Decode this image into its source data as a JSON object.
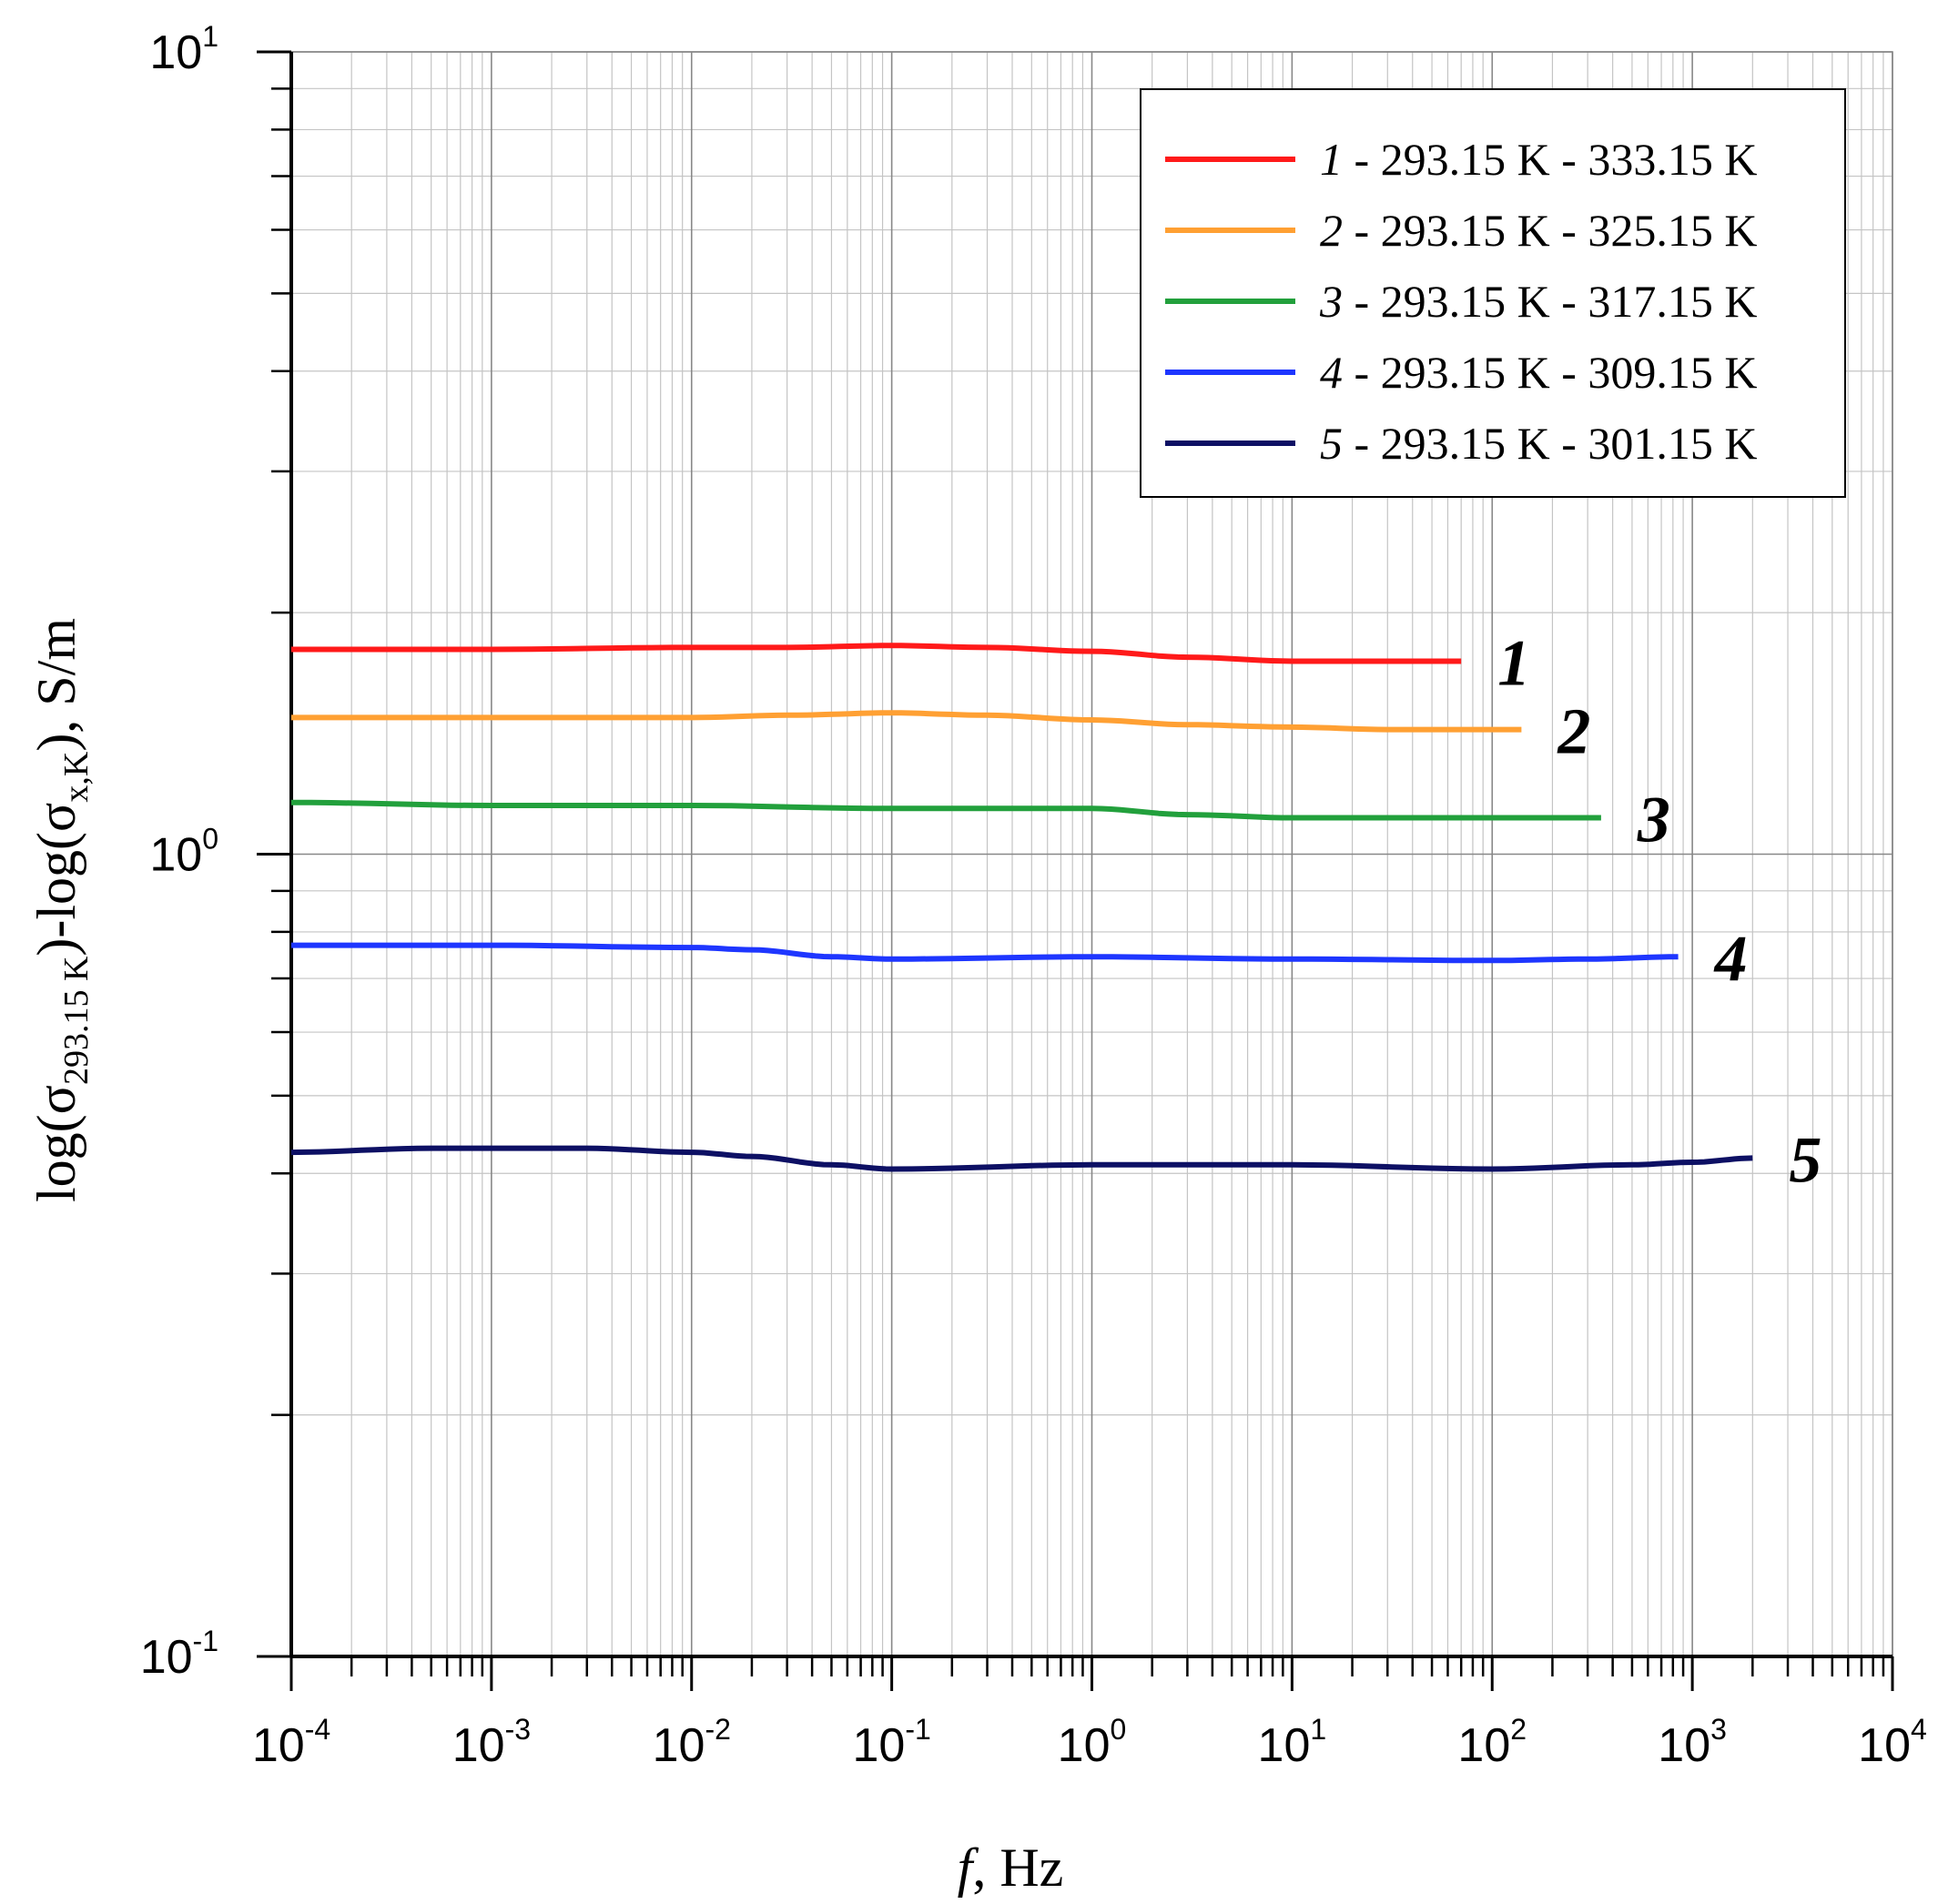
{
  "chart_data": {
    "type": "line",
    "xscale": "log",
    "yscale": "log",
    "xlim": [
      0.0001,
      10000
    ],
    "ylim": [
      0.1,
      10
    ],
    "x_ticks": [
      {
        "base": "10",
        "exp": "-4"
      },
      {
        "base": "10",
        "exp": "-3"
      },
      {
        "base": "10",
        "exp": "-2"
      },
      {
        "base": "10",
        "exp": "-1"
      },
      {
        "base": "10",
        "exp": "0"
      },
      {
        "base": "10",
        "exp": "1"
      },
      {
        "base": "10",
        "exp": "2"
      },
      {
        "base": "10",
        "exp": "3"
      },
      {
        "base": "10",
        "exp": "4"
      }
    ],
    "y_ticks": [
      {
        "base": "10",
        "exp": "1"
      },
      {
        "base": "10",
        "exp": "0"
      },
      {
        "base": "10",
        "exp": "-1"
      }
    ],
    "xlabel": {
      "italic": "f",
      "rest": ", Hz"
    },
    "ylabel": {
      "p1": "log(σ",
      "sub1": "293.15 K",
      "p2": ")-log(σ",
      "sub2": "x,K",
      "p3": "), S/m"
    },
    "grid": true,
    "legend_position": "top-right",
    "series": [
      {
        "name": "1 - 293.15 K - 333.15 K",
        "num": "1",
        "text": " - 293.15 K - 333.15 K",
        "color": "#ff1a1a",
        "x": [
          0.0001,
          0.001,
          0.01,
          0.03,
          0.1,
          0.3,
          1,
          3,
          10,
          70
        ],
        "y": [
          1.8,
          1.8,
          1.81,
          1.81,
          1.82,
          1.81,
          1.79,
          1.76,
          1.74,
          1.74
        ]
      },
      {
        "name": "2 - 293.15 K - 325.15 K",
        "num": "2",
        "text": " - 293.15 K - 325.15 K",
        "color": "#ffa033",
        "x": [
          0.0001,
          0.001,
          0.01,
          0.03,
          0.1,
          0.3,
          1,
          3,
          10,
          30,
          140
        ],
        "y": [
          1.48,
          1.48,
          1.48,
          1.49,
          1.5,
          1.49,
          1.47,
          1.45,
          1.44,
          1.43,
          1.43
        ]
      },
      {
        "name": "3 - 293.15 K - 317.15 K",
        "num": "3",
        "text": " - 293.15 K - 317.15 K",
        "color": "#22a03c",
        "x": [
          0.0001,
          0.001,
          0.01,
          0.1,
          1,
          3,
          10,
          30,
          100,
          350
        ],
        "y": [
          1.16,
          1.15,
          1.15,
          1.14,
          1.14,
          1.12,
          1.11,
          1.11,
          1.11,
          1.11
        ]
      },
      {
        "name": "4 - 293.15 K - 309.15 K",
        "num": "4",
        "text": " - 293.15 K - 309.15 K",
        "color": "#1e36ff",
        "x": [
          0.0001,
          0.001,
          0.01,
          0.02,
          0.05,
          0.1,
          1,
          10,
          100,
          300,
          850
        ],
        "y": [
          0.77,
          0.77,
          0.765,
          0.76,
          0.745,
          0.74,
          0.745,
          0.74,
          0.737,
          0.74,
          0.745
        ]
      },
      {
        "name": "5 - 293.15 K - 301.15 K",
        "num": "5",
        "text": " - 293.15 K - 301.15 K",
        "color": "#0d1064",
        "x": [
          0.0001,
          0.0005,
          0.003,
          0.01,
          0.02,
          0.05,
          0.1,
          1,
          10,
          100,
          500,
          1000,
          2000
        ],
        "y": [
          0.425,
          0.43,
          0.43,
          0.425,
          0.42,
          0.41,
          0.405,
          0.41,
          0.41,
          0.405,
          0.41,
          0.413,
          0.418
        ]
      }
    ]
  }
}
